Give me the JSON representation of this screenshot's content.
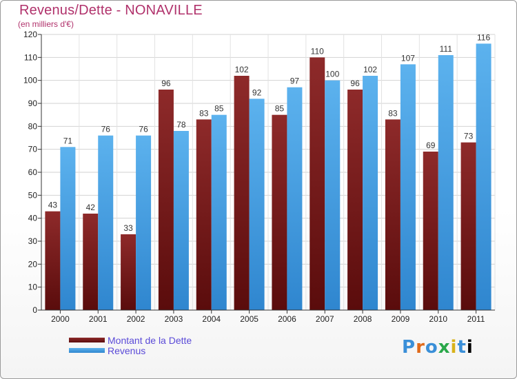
{
  "chart_data": {
    "type": "bar",
    "title": "Revenus/Dette - NONAVILLE",
    "subtitle": "(en milliers d'€)",
    "categories": [
      "2000",
      "2001",
      "2002",
      "2003",
      "2004",
      "2005",
      "2006",
      "2007",
      "2008",
      "2009",
      "2010",
      "2011"
    ],
    "series": [
      {
        "name": "Montant de la Dette",
        "color": "#7a1e1e",
        "values": [
          43,
          42,
          33,
          96,
          83,
          102,
          85,
          110,
          96,
          83,
          69,
          73
        ]
      },
      {
        "name": "Revenus",
        "color": "#4ea6e6",
        "values": [
          71,
          76,
          76,
          78,
          85,
          92,
          97,
          100,
          102,
          107,
          111,
          116
        ]
      }
    ],
    "ylim": [
      0,
      120
    ],
    "yticks": [
      0,
      10,
      20,
      30,
      40,
      50,
      60,
      70,
      80,
      90,
      100,
      110,
      120
    ],
    "grid": true,
    "legend_position": "bottom-left"
  },
  "logo_text": "Proxiti"
}
